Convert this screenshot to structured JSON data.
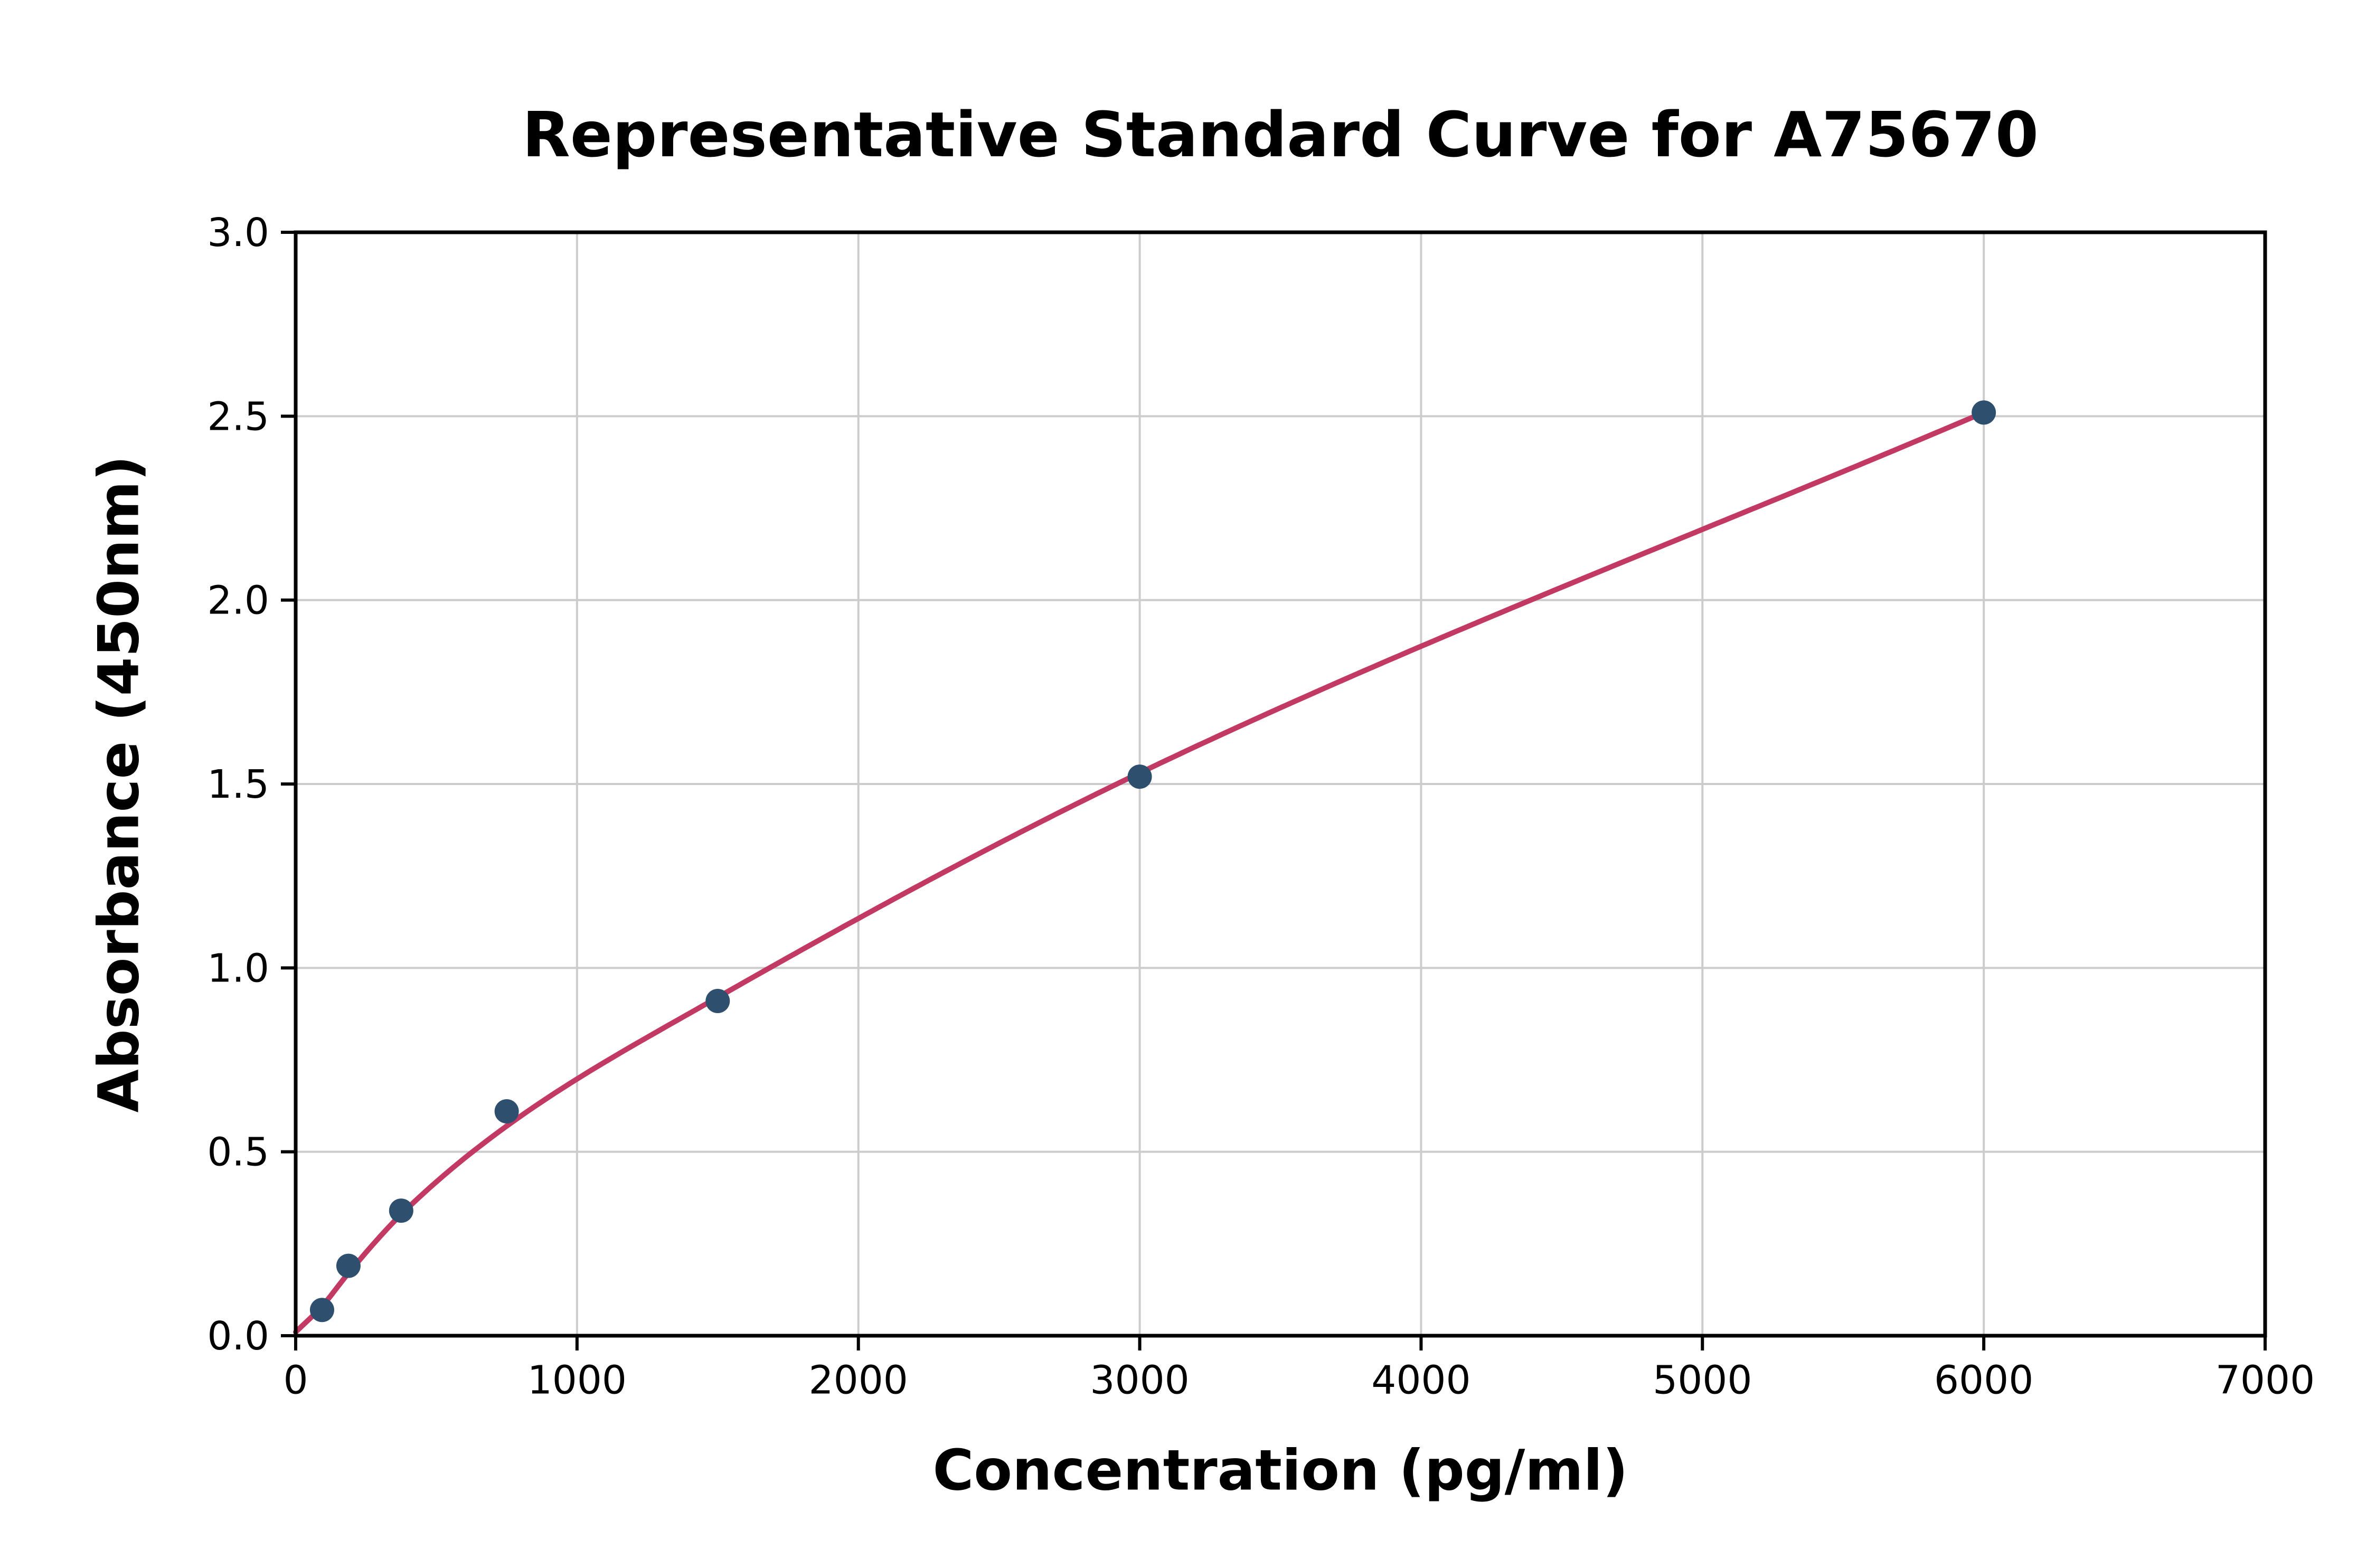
{
  "figure": {
    "background": "#ffffff"
  },
  "chart_data": {
    "type": "scatter",
    "title": "Representative Standard Curve for A75670",
    "xlabel": "Concentration (pg/ml)",
    "ylabel": "Absorbance (450nm)",
    "xlim": [
      0,
      7000
    ],
    "ylim": [
      0,
      3.0
    ],
    "x_ticks": [
      0,
      1000,
      2000,
      3000,
      4000,
      5000,
      6000,
      7000
    ],
    "x_tick_labels": [
      "0",
      "1000",
      "2000",
      "3000",
      "4000",
      "5000",
      "6000",
      "7000"
    ],
    "y_ticks": [
      0.0,
      0.5,
      1.0,
      1.5,
      2.0,
      2.5,
      3.0
    ],
    "y_tick_labels": [
      "0.0",
      "0.5",
      "1.0",
      "1.5",
      "2.0",
      "2.5",
      "3.0"
    ],
    "grid": true,
    "legend": "none",
    "points": [
      [
        93.75,
        0.07
      ],
      [
        187.5,
        0.19
      ],
      [
        375,
        0.34
      ],
      [
        750,
        0.61
      ],
      [
        1500,
        0.91
      ],
      [
        3000,
        1.52
      ],
      [
        6000,
        2.51
      ]
    ],
    "curve_points": [
      [
        0,
        0.01
      ],
      [
        93.75,
        0.08
      ],
      [
        187.5,
        0.17
      ],
      [
        375,
        0.33
      ],
      [
        750,
        0.57
      ],
      [
        1500,
        0.92
      ],
      [
        3000,
        1.53
      ],
      [
        6000,
        2.51
      ]
    ],
    "point_color": "#2f4f6e",
    "curve_color": "#c23a63",
    "grid_color": "#cccccc",
    "spine_color": "#000000"
  }
}
